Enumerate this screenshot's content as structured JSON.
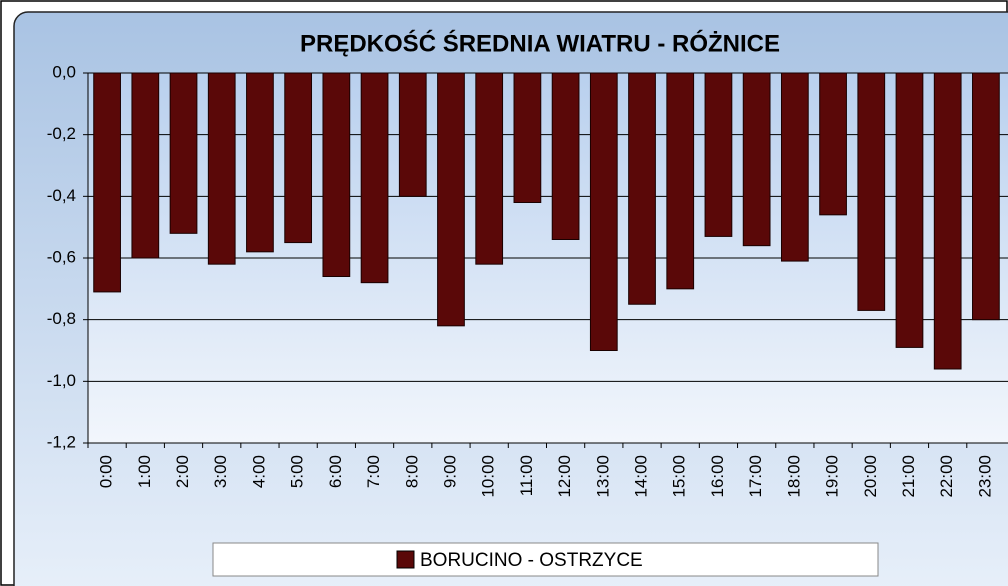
{
  "chart_data": {
    "type": "bar",
    "title": "PRĘDKOŚĆ ŚREDNIA WIATRU - RÓŻNICE",
    "categories": [
      "0:00",
      "1:00",
      "2:00",
      "3:00",
      "4:00",
      "5:00",
      "6:00",
      "7:00",
      "8:00",
      "9:00",
      "10:00",
      "11:00",
      "12:00",
      "13:00",
      "14:00",
      "15:00",
      "16:00",
      "17:00",
      "18:00",
      "19:00",
      "20:00",
      "21:00",
      "22:00",
      "23:00"
    ],
    "series": [
      {
        "name": "BORUCINO - OSTRZYCE",
        "color": "#5a0808",
        "values": [
          -0.71,
          -0.6,
          -0.52,
          -0.62,
          -0.58,
          -0.55,
          -0.66,
          -0.68,
          -0.4,
          -0.82,
          -0.62,
          -0.42,
          -0.54,
          -0.9,
          -0.75,
          -0.7,
          -0.53,
          -0.56,
          -0.61,
          -0.46,
          -0.77,
          -0.89,
          -0.96,
          -0.8
        ]
      }
    ],
    "ylim": [
      -1.2,
      0
    ],
    "yticks": [
      {
        "value": 0,
        "label": "0,0"
      },
      {
        "value": -0.2,
        "label": "-0,2"
      },
      {
        "value": -0.4,
        "label": "-0,4"
      },
      {
        "value": -0.6,
        "label": "-0,6"
      },
      {
        "value": -0.8,
        "label": "-0,8"
      },
      {
        "value": -1.0,
        "label": "-1,0"
      },
      {
        "value": -1.2,
        "label": "-1,2"
      }
    ],
    "grid": true,
    "legend": "bottom"
  }
}
